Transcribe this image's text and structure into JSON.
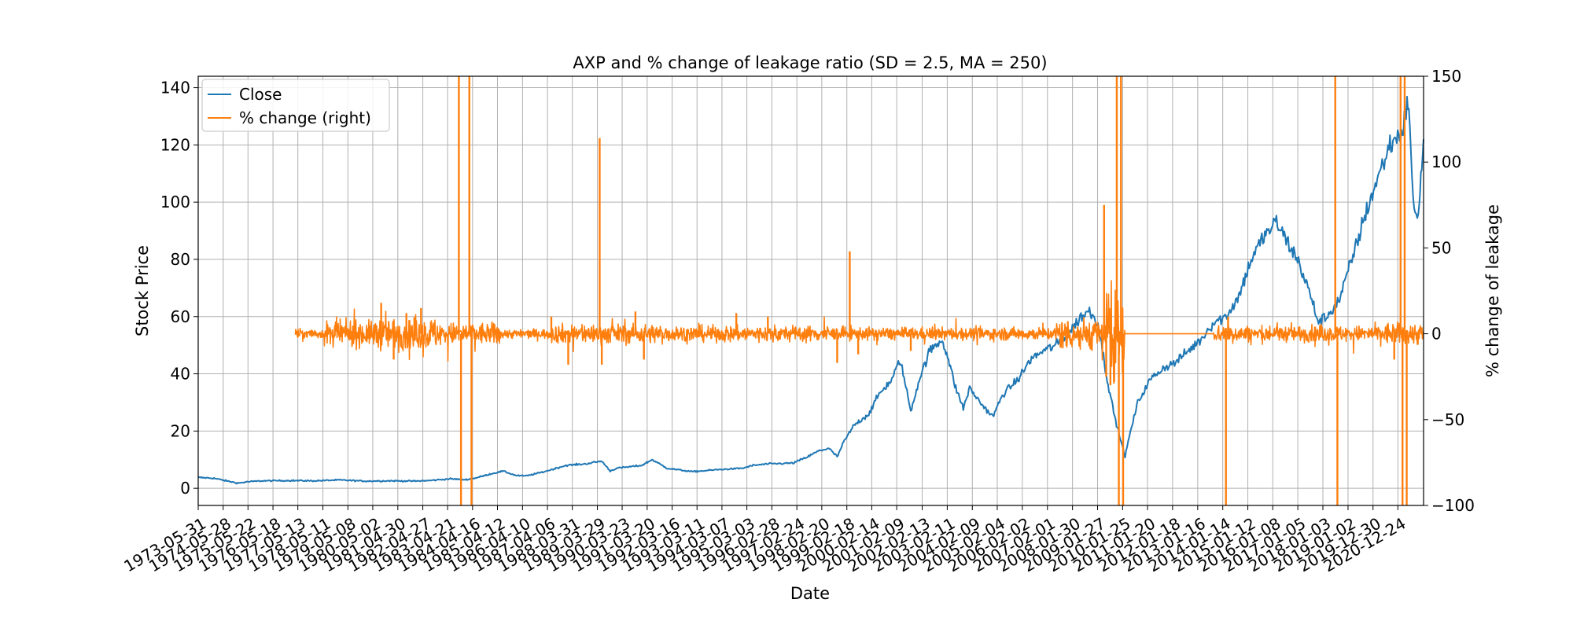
{
  "chart_data": {
    "type": "line",
    "title": "AXP and % change of leakage ratio (SD = 2.5, MA = 250)",
    "xlabel": "Date",
    "ylabel": "Stock Price",
    "y2label": "% change of leakage",
    "xlim": [
      "1973-05-31",
      "2021-12-31"
    ],
    "ylim": [
      -6,
      144
    ],
    "y2lim": [
      -100,
      150
    ],
    "grid": true,
    "legend_position": "upper-left",
    "x_ticks": [
      "1973-05-31",
      "1974-05-28",
      "1975-05-22",
      "1976-05-18",
      "1977-05-13",
      "1978-05-11",
      "1979-05-08",
      "1980-05-02",
      "1981-04-30",
      "1982-04-27",
      "1983-04-21",
      "1984-04-16",
      "1985-04-12",
      "1986-04-10",
      "1987-04-06",
      "1988-03-31",
      "1989-03-29",
      "1990-03-23",
      "1991-03-20",
      "1992-03-16",
      "1993-03-11",
      "1994-03-07",
      "1995-03-03",
      "1996-02-28",
      "1997-02-24",
      "1998-02-20",
      "1999-02-18",
      "2000-02-14",
      "2001-02-09",
      "2002-02-13",
      "2003-02-11",
      "2004-02-09",
      "2005-02-04",
      "2006-02-02",
      "2007-02-01",
      "2008-01-30",
      "2009-01-27",
      "2010-01-25",
      "2011-01-20",
      "2012-01-18",
      "2013-01-16",
      "2014-01-14",
      "2015-01-12",
      "2016-01-08",
      "2017-01-05",
      "2018-01-03",
      "2019-01-02",
      "2019-12-30",
      "2020-12-24"
    ],
    "y_ticks": [
      0,
      20,
      40,
      60,
      80,
      100,
      120,
      140
    ],
    "y2_ticks": [
      -100,
      -50,
      0,
      50,
      100,
      150
    ],
    "series": [
      {
        "name": "Close",
        "axis": "left",
        "color": "#1f77b4",
        "points": [
          [
            "1973-05-31",
            3.8
          ],
          [
            "1974-01-15",
            3.5
          ],
          [
            "1974-08-01",
            2.5
          ],
          [
            "1975-01-01",
            1.8
          ],
          [
            "1975-06-01",
            2.3
          ],
          [
            "1976-01-01",
            2.6
          ],
          [
            "1977-01-01",
            2.7
          ],
          [
            "1978-01-01",
            2.6
          ],
          [
            "1979-01-01",
            2.9
          ],
          [
            "1980-01-01",
            2.5
          ],
          [
            "1981-01-01",
            2.6
          ],
          [
            "1982-01-01",
            2.5
          ],
          [
            "1982-08-01",
            2.7
          ],
          [
            "1983-06-01",
            3.3
          ],
          [
            "1984-01-01",
            3.0
          ],
          [
            "1984-06-01",
            3.6
          ],
          [
            "1985-01-01",
            5.0
          ],
          [
            "1985-07-01",
            6.0
          ],
          [
            "1986-01-01",
            4.5
          ],
          [
            "1986-06-01",
            4.3
          ],
          [
            "1987-01-01",
            5.5
          ],
          [
            "1987-06-01",
            6.5
          ],
          [
            "1988-01-01",
            8.0
          ],
          [
            "1988-10-01",
            8.5
          ],
          [
            "1989-06-01",
            9.5
          ],
          [
            "1989-10-01",
            6.0
          ],
          [
            "1990-01-01",
            7.0
          ],
          [
            "1991-01-01",
            8.0
          ],
          [
            "1991-06-01",
            10.0
          ],
          [
            "1992-01-01",
            7.0
          ],
          [
            "1992-06-01",
            6.5
          ],
          [
            "1993-01-01",
            5.8
          ],
          [
            "1994-01-01",
            6.5
          ],
          [
            "1995-01-01",
            7.0
          ],
          [
            "1995-06-01",
            8.0
          ],
          [
            "1996-01-01",
            8.5
          ],
          [
            "1997-01-01",
            8.8
          ],
          [
            "1997-08-01",
            11.0
          ],
          [
            "1998-01-01",
            13.0
          ],
          [
            "1998-06-01",
            14.0
          ],
          [
            "1998-10-01",
            11.0
          ],
          [
            "1999-01-01",
            16.0
          ],
          [
            "1999-06-01",
            22.0
          ],
          [
            "2000-01-01",
            26.0
          ],
          [
            "2000-06-01",
            33.0
          ],
          [
            "2000-12-01",
            38.0
          ],
          [
            "2001-04-01",
            45.0
          ],
          [
            "2001-09-01",
            27.0
          ],
          [
            "2002-01-01",
            38.0
          ],
          [
            "2002-06-01",
            48.0
          ],
          [
            "2002-12-01",
            52.0
          ],
          [
            "2003-03-01",
            45.0
          ],
          [
            "2003-06-01",
            36.0
          ],
          [
            "2003-10-01",
            28.0
          ],
          [
            "2004-01-01",
            35.0
          ],
          [
            "2004-06-01",
            30.0
          ],
          [
            "2004-12-01",
            25.0
          ],
          [
            "2005-05-01",
            33.0
          ],
          [
            "2005-12-01",
            38.0
          ],
          [
            "2006-06-01",
            45.0
          ],
          [
            "2006-12-01",
            48.0
          ],
          [
            "2007-06-01",
            50.0
          ],
          [
            "2008-01-01",
            55.0
          ],
          [
            "2008-06-01",
            60.0
          ],
          [
            "2008-10-01",
            62.0
          ],
          [
            "2009-02-01",
            58.0
          ],
          [
            "2009-06-01",
            40.0
          ],
          [
            "2009-10-01",
            25.0
          ],
          [
            "2010-03-01",
            11.0
          ],
          [
            "2010-05-01",
            18.0
          ],
          [
            "2010-09-01",
            30.0
          ],
          [
            "2011-03-01",
            38.0
          ],
          [
            "2011-09-01",
            42.0
          ],
          [
            "2012-03-01",
            44.0
          ],
          [
            "2012-09-01",
            48.0
          ],
          [
            "2013-03-01",
            52.0
          ],
          [
            "2013-09-01",
            58.0
          ],
          [
            "2014-03-01",
            60.0
          ],
          [
            "2014-09-01",
            67.0
          ],
          [
            "2015-03-01",
            80.0
          ],
          [
            "2015-09-01",
            88.0
          ],
          [
            "2016-03-01",
            93.0
          ],
          [
            "2016-09-01",
            85.0
          ],
          [
            "2017-01-01",
            80.0
          ],
          [
            "2017-06-01",
            70.0
          ],
          [
            "2017-11-01",
            58.0
          ],
          [
            "2018-03-01",
            60.0
          ],
          [
            "2018-09-01",
            66.0
          ],
          [
            "2019-03-01",
            80.0
          ],
          [
            "2019-09-01",
            95.0
          ],
          [
            "2020-03-01",
            108.0
          ],
          [
            "2020-09-01",
            120.0
          ],
          [
            "2021-03-01",
            125.0
          ],
          [
            "2021-06-01",
            136.0
          ],
          [
            "2021-08-01",
            100.0
          ],
          [
            "2021-10-01",
            92.0
          ],
          [
            "2021-12-31",
            122.0
          ]
        ]
      },
      {
        "name": "% change (right)",
        "axis": "right",
        "color": "#ff7f0e",
        "start": "1977-04-01",
        "end": "2021-12-31",
        "baseline": 0,
        "noise_segments": [
          [
            "1977-04-01",
            "1978-06-01",
            3
          ],
          [
            "1978-06-01",
            "1980-06-01",
            8
          ],
          [
            "1980-06-01",
            "1983-01-01",
            10
          ],
          [
            "1983-01-01",
            "1985-06-01",
            7
          ],
          [
            "1985-06-01",
            "1987-06-01",
            3
          ],
          [
            "1987-06-01",
            "1992-01-01",
            6
          ],
          [
            "1992-01-01",
            "1998-06-01",
            5
          ],
          [
            "1998-06-01",
            "2007-06-01",
            4
          ],
          [
            "2007-06-01",
            "2009-06-01",
            10
          ],
          [
            "2009-06-01",
            "2010-03-01",
            25
          ],
          [
            "2013-09-01",
            "2014-06-01",
            6
          ],
          [
            "2014-06-01",
            "2020-06-01",
            5
          ],
          [
            "2020-06-01",
            "2021-12-31",
            7
          ]
        ],
        "flat_segments": [
          [
            "2010-03-01",
            "2013-09-01",
            0
          ]
        ],
        "spikes": [
          [
            "1980-09-01",
            18
          ],
          [
            "1981-03-01",
            -15
          ],
          [
            "1981-09-01",
            12
          ],
          [
            "1982-04-01",
            15
          ],
          [
            "1983-10-01",
            150
          ],
          [
            "1983-11-01",
            -100
          ],
          [
            "1984-03-01",
            150
          ],
          [
            "1984-04-01",
            -100
          ],
          [
            "1987-06-01",
            10
          ],
          [
            "1988-02-01",
            -18
          ],
          [
            "1989-05-01",
            114
          ],
          [
            "1989-06-01",
            -18
          ],
          [
            "1990-10-01",
            13
          ],
          [
            "1991-02-01",
            -15
          ],
          [
            "1994-10-01",
            12
          ],
          [
            "1996-01-01",
            10
          ],
          [
            "1998-10-01",
            -17
          ],
          [
            "1999-04-01",
            48
          ],
          [
            "1999-08-01",
            -12
          ],
          [
            "2001-09-01",
            -10
          ],
          [
            "2009-05-01",
            75
          ],
          [
            "2009-06-01",
            -25
          ],
          [
            "2009-08-01",
            -30
          ],
          [
            "2009-11-01",
            150
          ],
          [
            "2009-12-01",
            -100
          ],
          [
            "2010-01-01",
            150
          ],
          [
            "2010-02-01",
            -100
          ],
          [
            "2014-03-01",
            -100
          ],
          [
            "2014-04-01",
            10
          ],
          [
            "2018-07-01",
            150
          ],
          [
            "2018-08-01",
            -100
          ],
          [
            "2021-02-01",
            150
          ],
          [
            "2021-03-01",
            -100
          ],
          [
            "2021-04-01",
            150
          ],
          [
            "2021-05-01",
            -100
          ],
          [
            "2020-11-01",
            -15
          ]
        ]
      }
    ]
  }
}
